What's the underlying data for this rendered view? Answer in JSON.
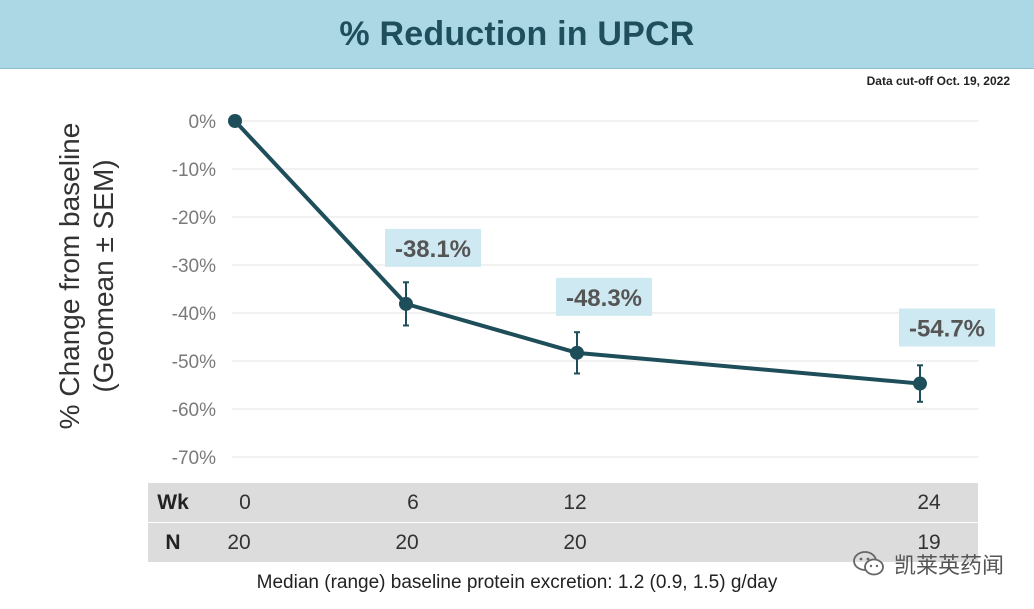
{
  "header": {
    "title": "% Reduction in UPCR"
  },
  "cutoff_note": "Data cut-off Oct. 19, 2022",
  "chart_data": {
    "type": "line",
    "title": "",
    "ylabel_line1": "% Change from baseline",
    "ylabel_line2": "(Geomean ± SEM)",
    "ylim": [
      -70,
      0
    ],
    "yticks": [
      0,
      -10,
      -20,
      -30,
      -40,
      -50,
      -60,
      -70
    ],
    "ytick_labels": [
      "0%",
      "-10%",
      "-20%",
      "-30%",
      "-40%",
      "-50%",
      "-60%",
      "-70%"
    ],
    "x": [
      0,
      6,
      12,
      24
    ],
    "values": [
      0,
      -38.1,
      -48.3,
      -54.7
    ],
    "sem": [
      0,
      4.5,
      4.3,
      3.8
    ],
    "point_labels": [
      "",
      "-38.1%",
      "-48.3%",
      "-54.7%"
    ],
    "grid": true,
    "line_color": "#1e4e5a"
  },
  "table": {
    "wk_label": "Wk",
    "n_label": "N",
    "wk_values": [
      "0",
      "6",
      "12",
      "24"
    ],
    "n_values": [
      "20",
      "20",
      "20",
      "19"
    ]
  },
  "footnote": "Median (range) baseline protein excretion: 1.2 (0.9, 1.5) g/day",
  "watermark": {
    "text": "凯莱英药闻",
    "icon": "wechat-icon"
  }
}
